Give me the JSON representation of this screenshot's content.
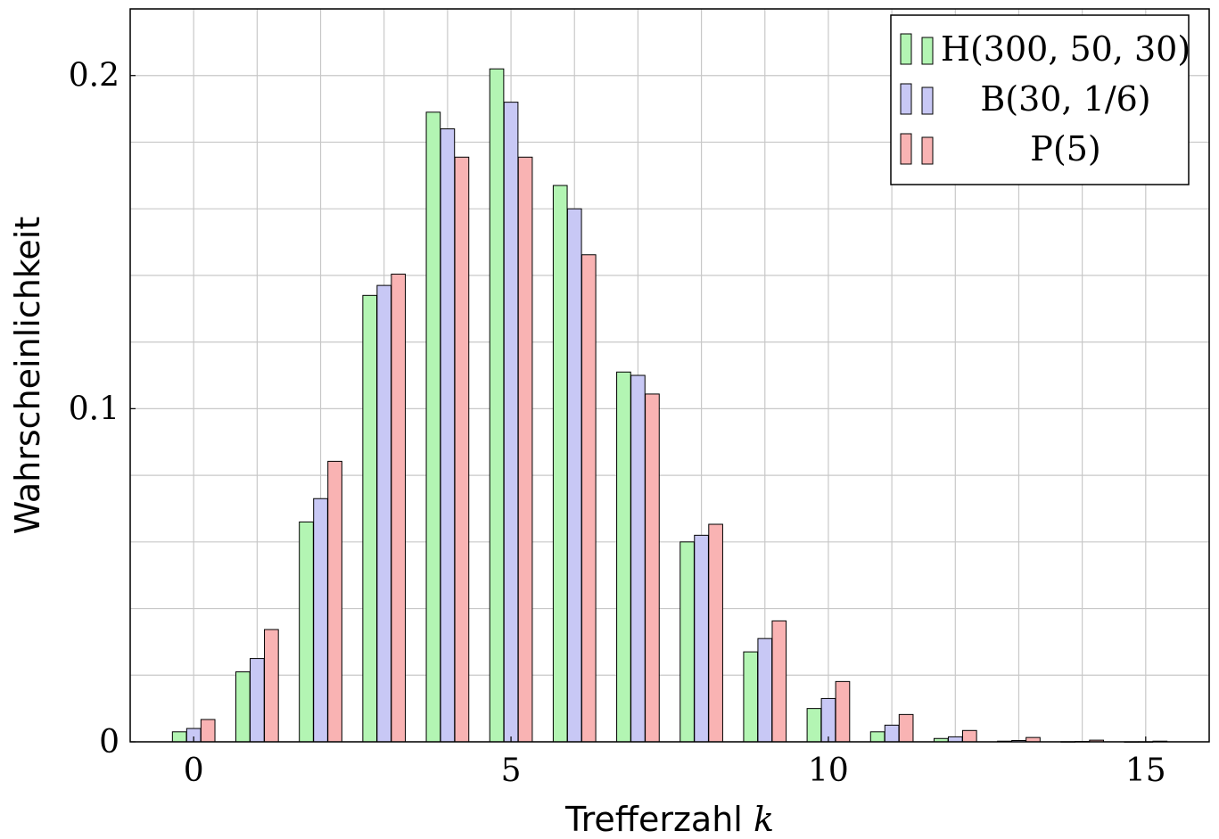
{
  "chart_data": {
    "type": "bar",
    "xlabel": "Trefferzahl",
    "xlabel_var": "k",
    "ylabel": "Wahrscheinlichkeit",
    "xlim": [
      -1,
      16
    ],
    "ylim": [
      0,
      0.22
    ],
    "x_ticks": [
      {
        "value": 0,
        "label": "0"
      },
      {
        "value": 5,
        "label": "5"
      },
      {
        "value": 10,
        "label": "10"
      },
      {
        "value": 15,
        "label": "15"
      }
    ],
    "y_ticks": [
      {
        "value": 0,
        "label": "0"
      },
      {
        "value": 0.1,
        "label": "0.1"
      },
      {
        "value": 0.2,
        "label": "0.2"
      }
    ],
    "grid": true,
    "legend_position": "top-right",
    "x": [
      0,
      1,
      2,
      3,
      4,
      5,
      6,
      7,
      8,
      9,
      10,
      11,
      12,
      13,
      14,
      15
    ],
    "series": [
      {
        "name": "H(300, 50, 30)",
        "color": "#b3f5b3",
        "values": [
          0.003,
          0.021,
          0.066,
          0.134,
          0.189,
          0.202,
          0.167,
          0.111,
          0.06,
          0.027,
          0.01,
          0.003,
          0.001,
          0.0002,
          4e-05,
          1e-05
        ]
      },
      {
        "name": "B(30, 1/6)",
        "color": "#c8c8f5",
        "values": [
          0.004,
          0.025,
          0.073,
          0.137,
          0.184,
          0.192,
          0.16,
          0.11,
          0.062,
          0.031,
          0.013,
          0.005,
          0.0015,
          0.0004,
          0.0001,
          2e-05
        ]
      },
      {
        "name": "P(5)",
        "color": "#f9b3b3",
        "values": [
          0.0067,
          0.0337,
          0.0842,
          0.1404,
          0.1755,
          0.1755,
          0.1462,
          0.1044,
          0.0653,
          0.0363,
          0.0181,
          0.0082,
          0.0034,
          0.0013,
          0.0005,
          0.0002
        ]
      }
    ]
  }
}
